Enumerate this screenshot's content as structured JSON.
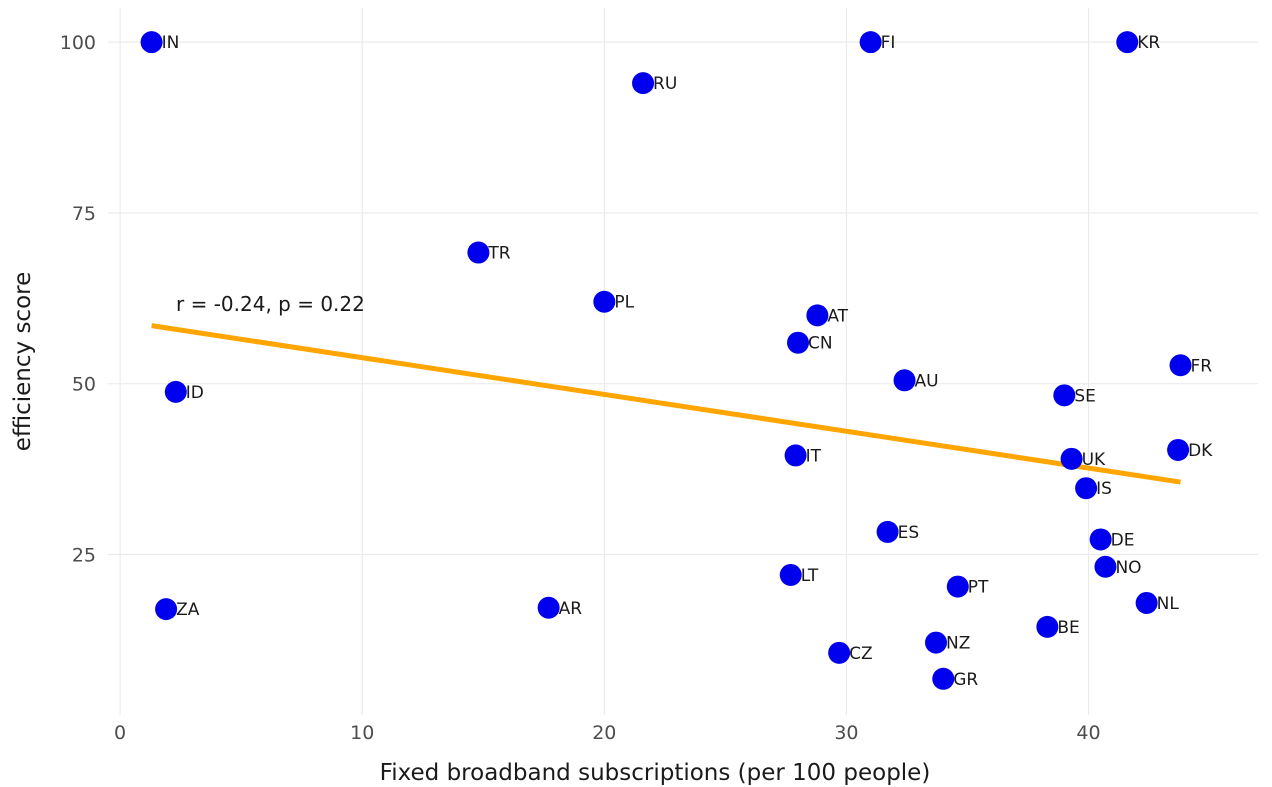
{
  "chart_data": {
    "type": "scatter",
    "xlabel": "Fixed broadband subscriptions  (per 100 people)",
    "ylabel": "efficiency score",
    "xlim": [
      -0.5,
      47
    ],
    "ylim": [
      1.5,
      105
    ],
    "x_ticks": [
      0,
      10,
      20,
      30,
      40
    ],
    "y_ticks": [
      25,
      50,
      75,
      100
    ],
    "grid": true,
    "point_color": "#0000ee",
    "trend_color": "#ffa500",
    "annotation": "r = -0.24, p = 0.22",
    "trendline": {
      "x": [
        1.3,
        43.8
      ],
      "y": [
        58.5,
        35.6
      ]
    },
    "points": [
      {
        "label": "IN",
        "x": 1.3,
        "y": 100.0
      },
      {
        "label": "RU",
        "x": 21.6,
        "y": 94.0
      },
      {
        "label": "FI",
        "x": 31.0,
        "y": 100.0
      },
      {
        "label": "KR",
        "x": 41.6,
        "y": 100.0
      },
      {
        "label": "TR",
        "x": 14.8,
        "y": 69.2
      },
      {
        "label": "PL",
        "x": 20.0,
        "y": 62.0
      },
      {
        "label": "AT",
        "x": 28.8,
        "y": 60.0
      },
      {
        "label": "CN",
        "x": 28.0,
        "y": 56.0
      },
      {
        "label": "ID",
        "x": 2.3,
        "y": 48.8
      },
      {
        "label": "AU",
        "x": 32.4,
        "y": 50.5
      },
      {
        "label": "SE",
        "x": 39.0,
        "y": 48.3
      },
      {
        "label": "FR",
        "x": 43.8,
        "y": 52.7
      },
      {
        "label": "IT",
        "x": 27.9,
        "y": 39.5
      },
      {
        "label": "UK",
        "x": 39.3,
        "y": 39.0
      },
      {
        "label": "DK",
        "x": 43.7,
        "y": 40.3
      },
      {
        "label": "IS",
        "x": 39.9,
        "y": 34.7
      },
      {
        "label": "ES",
        "x": 31.7,
        "y": 28.3
      },
      {
        "label": "DE",
        "x": 40.5,
        "y": 27.2
      },
      {
        "label": "NO",
        "x": 40.7,
        "y": 23.2
      },
      {
        "label": "LT",
        "x": 27.7,
        "y": 22.0
      },
      {
        "label": "PT",
        "x": 34.6,
        "y": 20.3
      },
      {
        "label": "ZA",
        "x": 1.9,
        "y": 17.0
      },
      {
        "label": "AR",
        "x": 17.7,
        "y": 17.2
      },
      {
        "label": "NL",
        "x": 42.4,
        "y": 17.9
      },
      {
        "label": "BE",
        "x": 38.3,
        "y": 14.4
      },
      {
        "label": "NZ",
        "x": 33.7,
        "y": 12.1
      },
      {
        "label": "CZ",
        "x": 29.7,
        "y": 10.6
      },
      {
        "label": "GR",
        "x": 34.0,
        "y": 6.8
      }
    ]
  }
}
